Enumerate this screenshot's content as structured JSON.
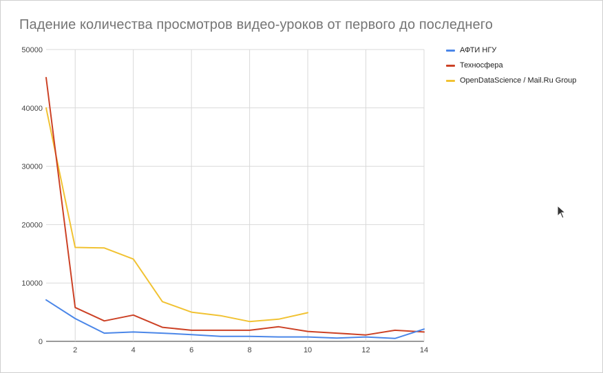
{
  "chart_data": {
    "type": "line",
    "title": "Падение количества просмотров видео-уроков от первого до последнего",
    "xlabel": "",
    "ylabel": "",
    "xlim": [
      1,
      14
    ],
    "ylim": [
      0,
      50000
    ],
    "x_ticks": [
      2,
      4,
      6,
      8,
      10,
      12,
      14
    ],
    "y_ticks": [
      0,
      10000,
      20000,
      30000,
      40000,
      50000
    ],
    "grid": true,
    "legend_position": "right",
    "series": [
      {
        "name": "АФТИ НГУ",
        "color": "#4a86e8",
        "x": [
          1,
          2,
          3,
          4,
          5,
          6,
          7,
          8,
          9,
          10,
          11,
          12,
          13,
          14
        ],
        "values": [
          7100,
          3900,
          1400,
          1600,
          1400,
          1150,
          850,
          850,
          750,
          750,
          550,
          750,
          500,
          2100
        ]
      },
      {
        "name": "Техносфера",
        "color": "#cc4125",
        "x": [
          1,
          2,
          3,
          4,
          5,
          6,
          7,
          8,
          9,
          10,
          11,
          12,
          13,
          14
        ],
        "values": [
          45200,
          5800,
          3500,
          4500,
          2400,
          1900,
          1900,
          1900,
          2500,
          1700,
          1400,
          1100,
          1900,
          1600
        ]
      },
      {
        "name": "OpenDataScience / Mail.Ru Group",
        "color": "#f1c232",
        "x": [
          1,
          2,
          3,
          4,
          5,
          6,
          7,
          8,
          9,
          10
        ],
        "values": [
          40000,
          16100,
          16000,
          14100,
          6800,
          5000,
          4400,
          3400,
          3800,
          4900
        ]
      }
    ]
  }
}
